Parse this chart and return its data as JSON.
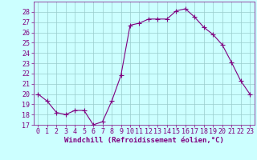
{
  "x": [
    0,
    1,
    2,
    3,
    4,
    5,
    6,
    7,
    8,
    9,
    10,
    11,
    12,
    13,
    14,
    15,
    16,
    17,
    18,
    19,
    20,
    21,
    22,
    23
  ],
  "y": [
    20.0,
    19.3,
    18.2,
    18.0,
    18.4,
    18.4,
    17.0,
    17.3,
    19.3,
    21.8,
    26.7,
    26.9,
    27.3,
    27.3,
    27.3,
    28.1,
    28.3,
    27.5,
    26.5,
    25.8,
    24.8,
    23.1,
    21.3,
    20.0
  ],
  "line_color": "#800080",
  "marker": "+",
  "markersize": 4,
  "linewidth": 0.8,
  "markeredgewidth": 0.8,
  "bg_color": "#ccffff",
  "grid_color": "#99cccc",
  "xlabel": "Windchill (Refroidissement éolien,°C)",
  "xlabel_color": "#800080",
  "tick_color": "#800080",
  "ylim": [
    17,
    29
  ],
  "xlim": [
    -0.5,
    23.5
  ],
  "yticks": [
    17,
    18,
    19,
    20,
    21,
    22,
    23,
    24,
    25,
    26,
    27,
    28
  ],
  "xticks": [
    0,
    1,
    2,
    3,
    4,
    5,
    6,
    7,
    8,
    9,
    10,
    11,
    12,
    13,
    14,
    15,
    16,
    17,
    18,
    19,
    20,
    21,
    22,
    23
  ],
  "xlabel_fontsize": 6.5,
  "tick_fontsize": 6.0
}
